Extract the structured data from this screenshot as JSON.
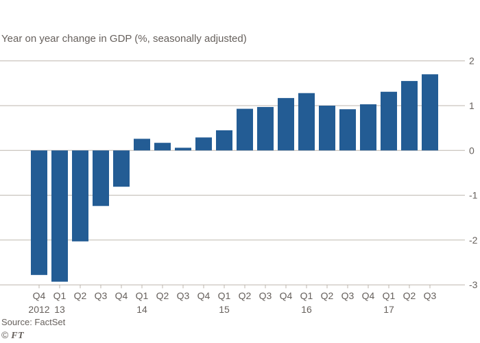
{
  "title": "Year on year change in GDP (%, seasonally adjusted)",
  "source": "Source: FactSet",
  "footer": {
    "copyright_symbol": "©",
    "ft_label": "FT"
  },
  "colors": {
    "bar": "#235c94",
    "text": "#66605c",
    "gridline": "#bdb6ae",
    "background": "#ffffff"
  },
  "chart_data": {
    "type": "bar",
    "title": "Year on year change in GDP (%, seasonally adjusted)",
    "categories": [
      "Q4 2012",
      "Q1 2013",
      "Q2 2013",
      "Q3 2013",
      "Q4 2013",
      "Q1 2014",
      "Q2 2014",
      "Q3 2014",
      "Q4 2014",
      "Q1 2015",
      "Q2 2015",
      "Q3 2015",
      "Q4 2015",
      "Q1 2016",
      "Q2 2016",
      "Q3 2016",
      "Q4 2016",
      "Q1 2017",
      "Q2 2017",
      "Q3 2017"
    ],
    "quarter_labels": [
      "Q4",
      "Q1",
      "Q2",
      "Q3",
      "Q4",
      "Q1",
      "Q2",
      "Q3",
      "Q4",
      "Q1",
      "Q2",
      "Q3",
      "Q4",
      "Q1",
      "Q2",
      "Q3",
      "Q4",
      "Q1",
      "Q2",
      "Q3"
    ],
    "year_labels": [
      {
        "index": 0,
        "label": "2012"
      },
      {
        "index": 1,
        "label": "13"
      },
      {
        "index": 5,
        "label": "14"
      },
      {
        "index": 9,
        "label": "15"
      },
      {
        "index": 13,
        "label": "16"
      },
      {
        "index": 17,
        "label": "17"
      }
    ],
    "values": [
      -2.78,
      -2.93,
      -2.03,
      -1.24,
      -0.81,
      0.26,
      0.17,
      0.06,
      0.29,
      0.45,
      0.93,
      0.97,
      1.17,
      1.28,
      1.0,
      0.92,
      1.03,
      1.31,
      1.55,
      1.7
    ],
    "y_ticks": [
      2,
      1,
      0,
      -1,
      -2,
      -3
    ],
    "ylim": [
      -3,
      2
    ],
    "xlabel": "",
    "ylabel": "",
    "grid": true,
    "legend": "none",
    "y_axis_side": "right"
  }
}
